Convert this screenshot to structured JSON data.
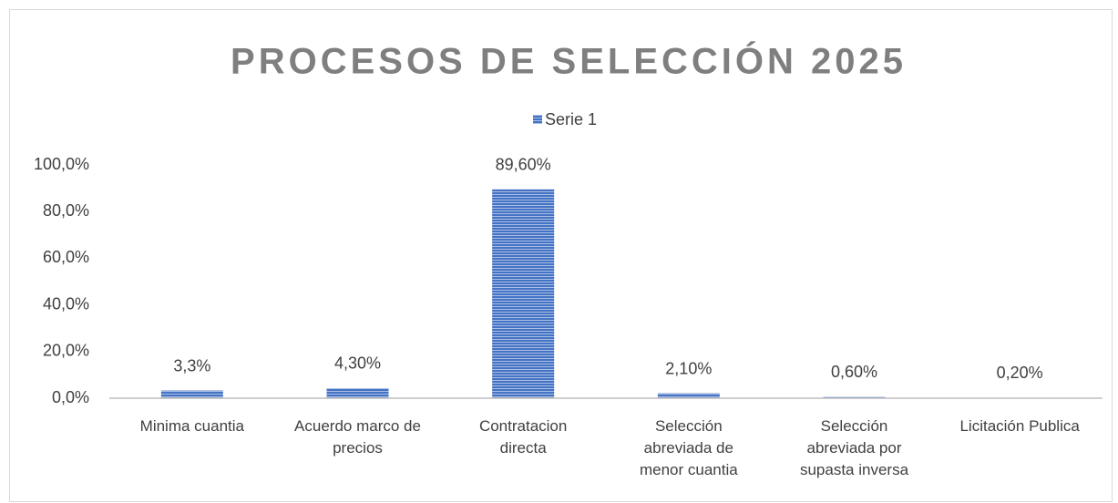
{
  "chart_data": {
    "type": "bar",
    "title": "PROCESOS DE SELECCIÓN 2025",
    "categories": [
      "Minima cuantia",
      "Acuerdo marco de precios",
      "Contratacion directa",
      "Selección abreviada de menor cuantia",
      "Selección abreviada por supasta inversa",
      "Licitación Publica"
    ],
    "series": [
      {
        "name": "Serie 1",
        "color": "#4472c4",
        "values": [
          3.3,
          4.3,
          89.6,
          2.1,
          0.6,
          0.2
        ],
        "value_labels": [
          "3,3%",
          "4,30%",
          "89,60%",
          "2,10%",
          "0,60%",
          "0,20%"
        ]
      }
    ],
    "ylim": [
      0,
      100
    ],
    "yticks": [
      {
        "value": 0,
        "label": "0,0%"
      },
      {
        "value": 20,
        "label": "20,0%"
      },
      {
        "value": 40,
        "label": "40,0%"
      },
      {
        "value": 60,
        "label": "60,0%"
      },
      {
        "value": 80,
        "label": "80,0%"
      },
      {
        "value": 100,
        "label": "100,0%"
      }
    ],
    "grid": false,
    "legend": "top"
  }
}
